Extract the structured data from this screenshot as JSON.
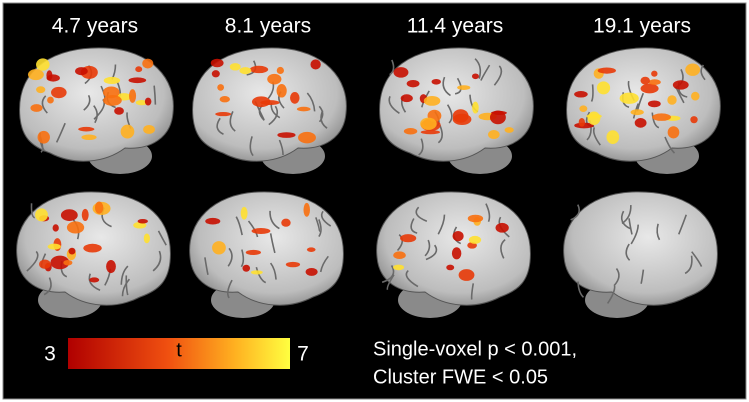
{
  "columns": [
    "4.7 years",
    "8.1 years",
    "11.4 years",
    "19.1 years"
  ],
  "colorbar": {
    "min": "3",
    "label": "t",
    "max": "7"
  },
  "note": [
    "Single-voxel p < 0.001,",
    "Cluster FWE < 0.05"
  ]
}
